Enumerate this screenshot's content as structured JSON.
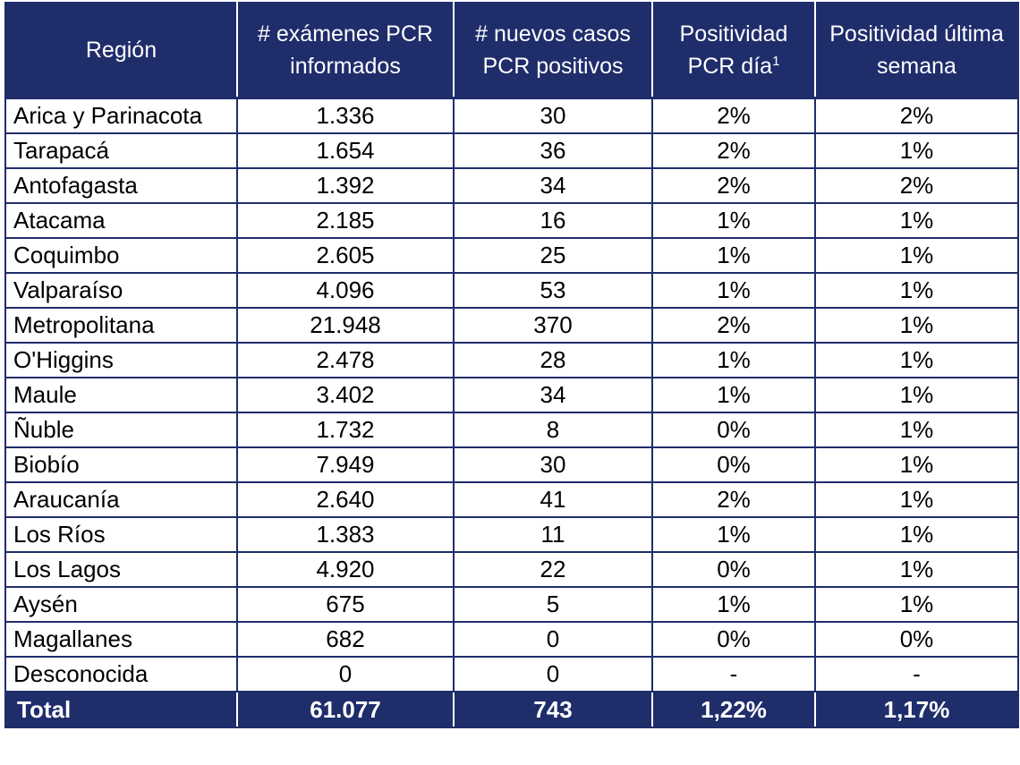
{
  "table": {
    "headers": {
      "region": "Región",
      "pcr_tests": "# exámenes PCR informados",
      "new_cases": "# nuevos casos PCR positivos",
      "positivity_day": "Positividad PCR día",
      "positivity_day_footnote": "1",
      "positivity_week": "Positividad última semana"
    },
    "rows": [
      {
        "region": "Arica y Parinacota",
        "pcr_tests": "1.336",
        "new_cases": "30",
        "positivity_day": "2%",
        "positivity_week": "2%"
      },
      {
        "region": "Tarapacá",
        "pcr_tests": "1.654",
        "new_cases": "36",
        "positivity_day": "2%",
        "positivity_week": "1%"
      },
      {
        "region": "Antofagasta",
        "pcr_tests": "1.392",
        "new_cases": "34",
        "positivity_day": "2%",
        "positivity_week": "2%"
      },
      {
        "region": "Atacama",
        "pcr_tests": "2.185",
        "new_cases": "16",
        "positivity_day": "1%",
        "positivity_week": "1%"
      },
      {
        "region": "Coquimbo",
        "pcr_tests": "2.605",
        "new_cases": "25",
        "positivity_day": "1%",
        "positivity_week": "1%"
      },
      {
        "region": "Valparaíso",
        "pcr_tests": "4.096",
        "new_cases": "53",
        "positivity_day": "1%",
        "positivity_week": "1%"
      },
      {
        "region": "Metropolitana",
        "pcr_tests": "21.948",
        "new_cases": "370",
        "positivity_day": "2%",
        "positivity_week": "1%"
      },
      {
        "region": "O'Higgins",
        "pcr_tests": "2.478",
        "new_cases": "28",
        "positivity_day": "1%",
        "positivity_week": "1%"
      },
      {
        "region": "Maule",
        "pcr_tests": "3.402",
        "new_cases": "34",
        "positivity_day": "1%",
        "positivity_week": "1%"
      },
      {
        "region": "Ñuble",
        "pcr_tests": "1.732",
        "new_cases": "8",
        "positivity_day": "0%",
        "positivity_week": "1%"
      },
      {
        "region": "Biobío",
        "pcr_tests": "7.949",
        "new_cases": "30",
        "positivity_day": "0%",
        "positivity_week": "1%"
      },
      {
        "region": "Araucanía",
        "pcr_tests": "2.640",
        "new_cases": "41",
        "positivity_day": "2%",
        "positivity_week": "1%"
      },
      {
        "region": "Los Ríos",
        "pcr_tests": "1.383",
        "new_cases": "11",
        "positivity_day": "1%",
        "positivity_week": "1%"
      },
      {
        "region": "Los Lagos",
        "pcr_tests": "4.920",
        "new_cases": "22",
        "positivity_day": "0%",
        "positivity_week": "1%"
      },
      {
        "region": "Aysén",
        "pcr_tests": "675",
        "new_cases": "5",
        "positivity_day": "1%",
        "positivity_week": "1%"
      },
      {
        "region": "Magallanes",
        "pcr_tests": "682",
        "new_cases": "0",
        "positivity_day": "0%",
        "positivity_week": "0%"
      },
      {
        "region": "Desconocida",
        "pcr_tests": "0",
        "new_cases": "0",
        "positivity_day": "-",
        "positivity_week": "-"
      }
    ],
    "total": {
      "label": "Total",
      "pcr_tests": "61.077",
      "new_cases": "743",
      "positivity_day": "1,22%",
      "positivity_week": "1,17%"
    }
  },
  "colors": {
    "header_bg": "#1f2d6b",
    "header_text": "#ffffff",
    "grid": "#1f2d6b"
  }
}
